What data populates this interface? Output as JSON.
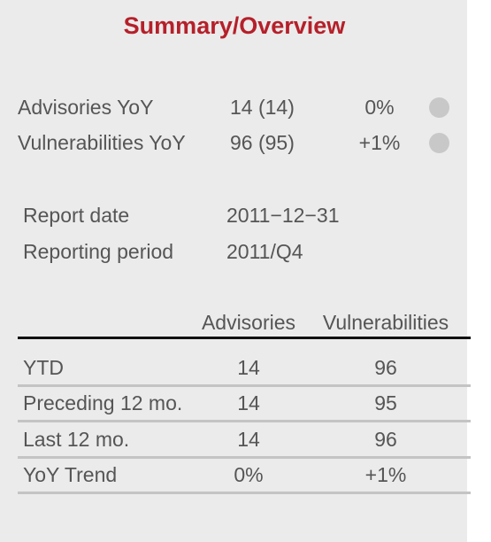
{
  "title": "Summary/Overview",
  "yoy": [
    {
      "label": "Advisories YoY",
      "count": "14 (14)",
      "change": "0%",
      "indicator_color": "#c8c8c8"
    },
    {
      "label": "Vulnerabilities YoY",
      "count": "96 (95)",
      "change": "+1%",
      "indicator_color": "#c8c8c8"
    }
  ],
  "info": [
    {
      "label": "Report date",
      "value": "2011−12−31"
    },
    {
      "label": "Reporting period",
      "value": "2011/Q4"
    }
  ],
  "table": {
    "headers": [
      "Advisories",
      "Vulnerabilities"
    ],
    "rows": [
      {
        "label": "YTD",
        "advisories": "14",
        "vulnerabilities": "96"
      },
      {
        "label": "Preceding 12 mo.",
        "advisories": "14",
        "vulnerabilities": "95"
      },
      {
        "label": "Last 12 mo.",
        "advisories": "14",
        "vulnerabilities": "96"
      },
      {
        "label": "YoY Trend",
        "advisories": "0%",
        "vulnerabilities": "+1%"
      }
    ]
  },
  "colors": {
    "title": "#b5202a",
    "panel_background": "#ebebeb",
    "text": "#555555",
    "header_rule": "#111111",
    "row_rule": "#c4c4c4"
  }
}
